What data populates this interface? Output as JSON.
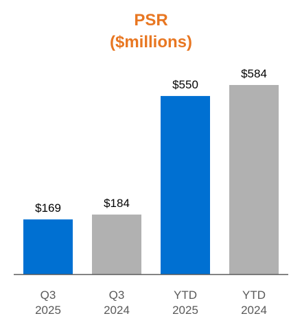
{
  "chart_data": {
    "type": "bar",
    "title_lines": [
      "PSR",
      "($millions)"
    ],
    "categories": [
      {
        "line1": "Q3",
        "line2": "2025"
      },
      {
        "line1": "Q3",
        "line2": "2024"
      },
      {
        "line1": "YTD",
        "line2": "2025"
      },
      {
        "line1": "YTD",
        "line2": "2024"
      }
    ],
    "values": [
      169,
      184,
      550,
      584
    ],
    "value_labels": [
      "$169",
      "$184",
      "$550",
      "$584"
    ],
    "bar_colors": [
      "#0070D2",
      "#B1B1B1",
      "#0070D2",
      "#B1B1B1"
    ],
    "axis_color": "#595959",
    "ylim": [
      0,
      600
    ],
    "grid": false,
    "legend": "none"
  }
}
